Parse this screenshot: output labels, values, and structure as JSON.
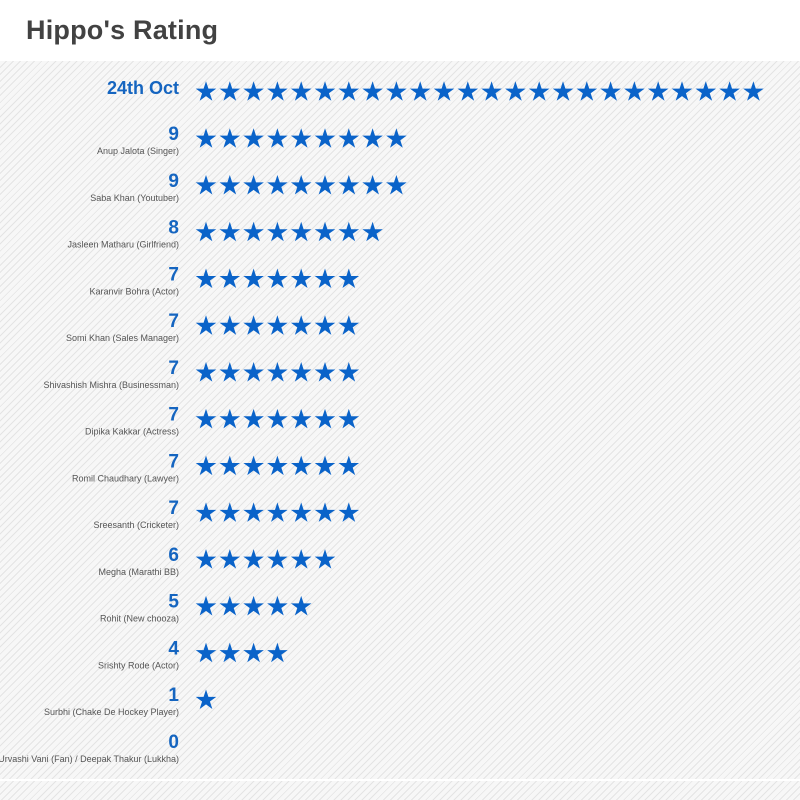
{
  "title": "Hippo's Rating",
  "colors": {
    "accent": "#0a63c9",
    "value_text": "#1565c0",
    "title_text": "#424242"
  },
  "chart_data": {
    "type": "bar",
    "mark": "star-icon",
    "title": "Hippo's Rating",
    "header": {
      "label": "24th Oct",
      "stars": 24
    },
    "categories": [
      "Anup Jalota (Singer)",
      "Saba Khan (Youtuber)",
      "Jasleen Matharu (Girlfriend)",
      "Karanvir Bohra (Actor)",
      "Somi Khan (Sales Manager)",
      "Shivashish Mishra (Businessman)",
      "Dipika Kakkar (Actress)",
      "Romil Chaudhary (Lawyer)",
      "Sreesanth (Cricketer)",
      "Megha (Marathi BB)",
      "Rohit (New chooza)",
      "Srishty Rode (Actor)",
      "Surbhi (Chake De Hockey Player)",
      "Urvashi Vani (Fan) / Deepak Thakur (Lukkha)"
    ],
    "values": [
      9,
      9,
      8,
      7,
      7,
      7,
      7,
      7,
      7,
      6,
      5,
      4,
      1,
      0
    ]
  }
}
